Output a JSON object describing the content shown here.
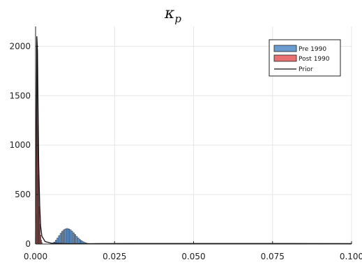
{
  "chart_data": {
    "type": "bar",
    "title": "κ_p",
    "title_base": "κ",
    "title_sub": "p",
    "xlabel": "",
    "ylabel": "",
    "xlim": [
      0.0,
      0.1
    ],
    "ylim": [
      0,
      2200
    ],
    "grid": true,
    "legend_position": "top-right",
    "x_ticks": [
      0.0,
      0.025,
      0.05,
      0.075,
      0.1
    ],
    "x_tick_labels": [
      "0.000",
      "0.025",
      "0.050",
      "0.075",
      "0.100"
    ],
    "y_ticks": [
      0,
      500,
      1000,
      1500,
      2000
    ],
    "y_tick_labels": [
      "0",
      "500",
      "1000",
      "1500",
      "2000"
    ],
    "series": [
      {
        "name": "Pre 1990",
        "kind": "histogram",
        "color": "#6a9bd1",
        "bin_width": 0.0005,
        "x": [
          0.0055,
          0.006,
          0.0065,
          0.007,
          0.0075,
          0.008,
          0.0085,
          0.009,
          0.0095,
          0.01,
          0.0105,
          0.011,
          0.0115,
          0.012,
          0.0125,
          0.013,
          0.0135,
          0.014,
          0.0145,
          0.015,
          0.0155,
          0.016,
          0.0165,
          0.017,
          0.0175,
          0.018
        ],
        "values": [
          10,
          20,
          38,
          60,
          85,
          108,
          128,
          143,
          152,
          156,
          152,
          144,
          130,
          113,
          95,
          77,
          60,
          45,
          33,
          23,
          16,
          10,
          6,
          4,
          2,
          1
        ]
      },
      {
        "name": "Post 1990",
        "kind": "histogram",
        "color": "#e87070",
        "bin_width": 0.0002,
        "x": [
          0.0002,
          0.0004,
          0.0006,
          0.0008,
          0.001,
          0.0012,
          0.0014,
          0.0016,
          0.0018,
          0.002
        ],
        "values": [
          300,
          2000,
          1800,
          1200,
          700,
          380,
          200,
          90,
          40,
          15
        ]
      },
      {
        "name": "Prior",
        "kind": "line",
        "color": "#111111",
        "x": [
          0.0,
          0.0002,
          0.0004,
          0.0006,
          0.0008,
          0.001,
          0.0013,
          0.0016,
          0.002,
          0.003,
          0.005,
          0.01,
          0.02,
          0.03,
          0.05,
          0.075,
          0.1
        ],
        "values": [
          0,
          900,
          2100,
          1950,
          1350,
          800,
          400,
          180,
          80,
          25,
          8,
          3,
          4,
          5,
          5,
          5,
          4
        ]
      }
    ]
  }
}
